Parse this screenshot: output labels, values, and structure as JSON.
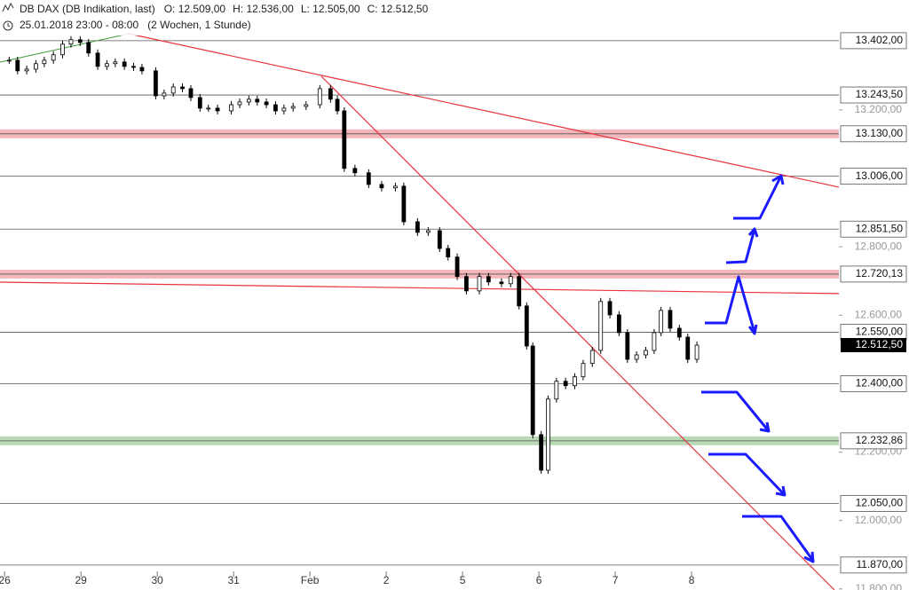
{
  "chart_data": {
    "type": "candlestick",
    "title": "DB DAX (DB Indikation, last)",
    "quote": [
      {
        "value": 12509,
        "label": "O: 12.509,00"
      },
      {
        "value": 12536,
        "label": "H: 12.536,00"
      },
      {
        "value": 12505,
        "label": "L: 12.505,00"
      },
      {
        "value": 12512.5,
        "label": "C: 12.512,50"
      }
    ],
    "period": "25.01.2018 23:00 - 08:00",
    "interval": "(2 Wochen, 1 Stunde)",
    "xlim": [
      -0.06,
      10.93
    ],
    "xticks": [
      {
        "value": 0,
        "label": "26"
      },
      {
        "value": 1,
        "label": "29"
      },
      {
        "value": 2,
        "label": "30"
      },
      {
        "value": 3,
        "label": "31"
      },
      {
        "value": 4,
        "label": "Feb"
      },
      {
        "value": 5,
        "label": "2"
      },
      {
        "value": 6,
        "label": "5"
      },
      {
        "value": 7,
        "label": "6"
      },
      {
        "value": 8,
        "label": "7"
      },
      {
        "value": 9,
        "label": "8"
      }
    ],
    "ylim": [
      11797,
      13521
    ],
    "yticks": [
      {
        "value": 13200,
        "label": "13.200,00"
      },
      {
        "value": 12800,
        "label": "12.800,00"
      },
      {
        "value": 12600,
        "label": "12.600,00"
      },
      {
        "value": 12200,
        "label": "12.200,00"
      },
      {
        "value": 12000,
        "label": "12.000,00"
      },
      {
        "value": 11800,
        "label": "11.800,00"
      }
    ],
    "grid": false,
    "levels": [
      {
        "value": 13402,
        "label": "13.402,00",
        "style": "line"
      },
      {
        "value": 13243.5,
        "label": "13.243,50",
        "style": "line"
      },
      {
        "value": 13130,
        "label": "13.130,00",
        "style": "band",
        "color": "#f4b8bc"
      },
      {
        "value": 13006,
        "label": "13.006,00",
        "style": "line"
      },
      {
        "value": 12851.5,
        "label": "12.851,50",
        "style": "line"
      },
      {
        "value": 12720.13,
        "label": "12.720,13",
        "style": "band",
        "color": "#f4b8bc"
      },
      {
        "value": 12550,
        "label": "12.550,00",
        "style": "line"
      },
      {
        "value": 12400,
        "label": "12.400,00",
        "style": "line"
      },
      {
        "value": 12232.86,
        "label": "12.232,86",
        "style": "band",
        "color": "#b9d9b5"
      },
      {
        "value": 12050,
        "label": "12.050,00",
        "style": "line"
      },
      {
        "value": 11870,
        "label": "11.870,00",
        "style": "line"
      }
    ],
    "last": {
      "value": 12512.5,
      "label": "12.512,50"
    },
    "x": [
      0.06,
      0.17,
      0.29,
      0.41,
      0.52,
      0.64,
      0.76,
      0.87,
      0.99,
      1.1,
      1.22,
      1.34,
      1.45,
      1.57,
      1.69,
      1.8,
      1.98,
      2.09,
      2.21,
      2.33,
      2.44,
      2.56,
      2.67,
      2.79,
      2.97,
      3.08,
      3.2,
      3.31,
      3.43,
      3.55,
      3.66,
      3.78,
      3.95,
      4.13,
      4.27,
      4.36,
      4.45,
      4.59,
      4.77,
      4.94,
      5.12,
      5.23,
      5.41,
      5.55,
      5.7,
      5.81,
      5.93,
      6.05,
      6.22,
      6.34,
      6.51,
      6.63,
      6.74,
      6.84,
      6.92,
      7.03,
      7.12,
      7.23,
      7.35,
      7.47,
      7.58,
      7.7,
      7.81,
      7.93,
      8.05,
      8.16,
      8.28,
      8.4,
      8.51,
      8.6,
      8.72,
      8.84,
      8.95,
      9.07
    ],
    "values": [
      13345,
      13314,
      13319,
      13335,
      13345,
      13361,
      13392,
      13405,
      13397,
      13366,
      13327,
      13335,
      13340,
      13327,
      13324,
      13314,
      13241,
      13249,
      13267,
      13262,
      13236,
      13205,
      13205,
      13197,
      13215,
      13223,
      13231,
      13223,
      13215,
      13197,
      13205,
      13210,
      13215,
      13262,
      13231,
      13197,
      13029,
      13016,
      12982,
      12972,
      12977,
      12873,
      12842,
      12847,
      12795,
      12770,
      12713,
      12671,
      12713,
      12697,
      12692,
      12713,
      12627,
      12510,
      12251,
      12147,
      12355,
      12407,
      12394,
      12420,
      12459,
      12497,
      12640,
      12601,
      12549,
      12471,
      12484,
      12497,
      12549,
      12614,
      12562,
      12536,
      12471,
      12512.5
    ]
  }
}
